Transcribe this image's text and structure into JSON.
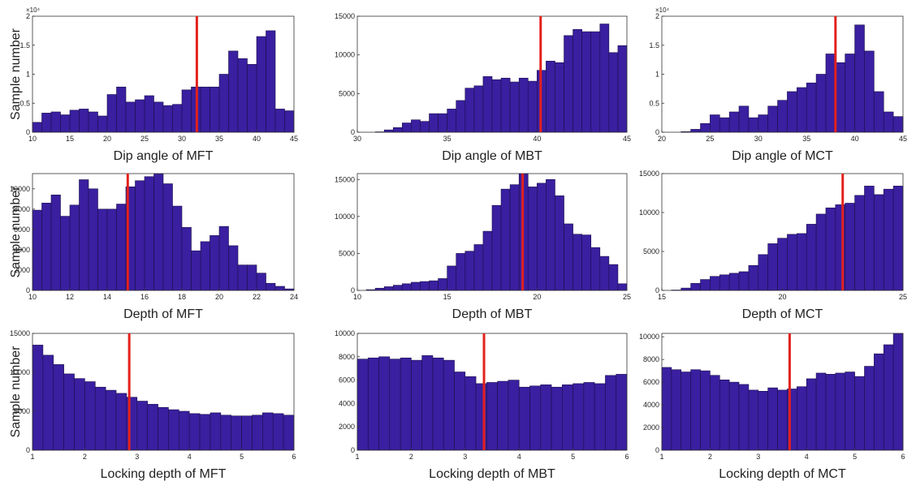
{
  "chart_data": [
    {
      "type": "histogram",
      "x_label": "Dip angle of MFT",
      "y_label": "Sample number",
      "y_exponent_label": "×10⁴",
      "color": "#3a1fa0",
      "marker_color": "#e3211c",
      "marker": 32,
      "bins": [
        10,
        11.25,
        12.5,
        13.75,
        15,
        16.25,
        17.5,
        18.75,
        20,
        21.25,
        22.5,
        23.75,
        25,
        26.25,
        27.5,
        28.75,
        30,
        31.25,
        32.5,
        33.75,
        35,
        36.25,
        37.5,
        38.75,
        40,
        41.25,
        42.5,
        43.75,
        45
      ],
      "values": [
        0.17,
        0.33,
        0.35,
        0.3,
        0.38,
        0.4,
        0.35,
        0.28,
        0.65,
        0.78,
        0.52,
        0.56,
        0.63,
        0.52,
        0.46,
        0.48,
        0.73,
        0.78,
        0.78,
        0.78,
        1.0,
        1.4,
        1.27,
        1.17,
        1.65,
        1.75,
        0.4,
        0.37
      ],
      "xlim": [
        10,
        45
      ],
      "xticks": [
        10,
        15,
        20,
        25,
        30,
        35,
        40,
        45
      ],
      "ylim": [
        0,
        2
      ],
      "yticks": [
        0,
        0.5,
        1,
        1.5,
        2
      ]
    },
    {
      "type": "histogram",
      "x_label": "Dip angle of MBT",
      "color": "#3a1fa0",
      "marker_color": "#e3211c",
      "marker": 40.2,
      "bins": [
        30,
        30.5,
        31,
        31.5,
        32,
        32.5,
        33,
        33.5,
        34,
        34.5,
        35,
        35.5,
        36,
        36.5,
        37,
        37.5,
        38,
        38.5,
        39,
        39.5,
        40,
        40.5,
        41,
        41.5,
        42,
        42.5,
        43,
        43.5,
        44,
        44.5,
        45
      ],
      "values": [
        0,
        0,
        50,
        300,
        600,
        1200,
        1600,
        1400,
        2400,
        2400,
        3000,
        4100,
        5700,
        6000,
        7200,
        6800,
        7000,
        6500,
        7000,
        6600,
        8000,
        9200,
        9000,
        12500,
        13300,
        13000,
        13000,
        14000,
        10300,
        11200
      ],
      "xlim": [
        30,
        45
      ],
      "xticks": [
        30,
        35,
        40,
        45
      ],
      "ylim": [
        0,
        15000
      ],
      "yticks": [
        0,
        5000,
        10000,
        15000
      ]
    },
    {
      "type": "histogram",
      "x_label": "Dip angle of MCT",
      "y_exponent_label": "×10⁴",
      "color": "#3a1fa0",
      "marker_color": "#e3211c",
      "marker": 38,
      "bins": [
        20,
        21,
        22,
        23,
        24,
        25,
        26,
        27,
        28,
        29,
        30,
        31,
        32,
        33,
        34,
        35,
        36,
        37,
        38,
        39,
        40,
        41,
        42,
        43,
        44,
        45
      ],
      "values": [
        0,
        0,
        0.01,
        0.05,
        0.15,
        0.3,
        0.25,
        0.35,
        0.45,
        0.25,
        0.3,
        0.45,
        0.55,
        0.7,
        0.77,
        0.85,
        1.0,
        1.35,
        1.2,
        1.35,
        1.85,
        1.4,
        0.7,
        0.35,
        0.27
      ],
      "xlim": [
        20,
        45
      ],
      "xticks": [
        20,
        25,
        30,
        35,
        40,
        45
      ],
      "ylim": [
        0,
        2
      ],
      "yticks": [
        0,
        0.5,
        1,
        1.5,
        2
      ]
    },
    {
      "type": "histogram",
      "x_label": "Depth of MFT",
      "y_label": "Sample number",
      "color": "#3a1fa0",
      "marker_color": "#e3211c",
      "marker": 15.1,
      "bins": [
        10,
        10.5,
        11,
        11.5,
        12,
        12.5,
        13,
        13.5,
        14,
        14.5,
        15,
        15.5,
        16,
        16.5,
        17,
        17.5,
        18,
        18.5,
        19,
        19.5,
        20,
        20.5,
        21,
        21.5,
        22,
        22.5,
        23,
        23.5,
        24
      ],
      "values": [
        7900,
        8600,
        9400,
        7300,
        8400,
        10900,
        10000,
        8000,
        8000,
        8500,
        10200,
        10800,
        11200,
        11500,
        10500,
        8300,
        6200,
        3900,
        4800,
        5400,
        6300,
        4400,
        2500,
        2500,
        1700,
        700,
        400,
        150
      ],
      "xlim": [
        10,
        24
      ],
      "xticks": [
        10,
        12,
        14,
        16,
        18,
        20,
        22,
        24
      ],
      "ylim": [
        0,
        11500
      ],
      "yticks": [
        0,
        2000,
        4000,
        6000,
        8000,
        10000
      ]
    },
    {
      "type": "histogram",
      "x_label": "Depth of MBT",
      "color": "#3a1fa0",
      "marker_color": "#e3211c",
      "marker": 19.2,
      "bins": [
        10,
        10.5,
        11,
        11.5,
        12,
        12.5,
        13,
        13.5,
        14,
        14.5,
        15,
        15.5,
        16,
        16.5,
        17,
        17.5,
        18,
        18.5,
        19,
        19.5,
        20,
        20.5,
        21,
        21.5,
        22,
        22.5,
        23,
        23.5,
        24,
        24.5,
        25
      ],
      "values": [
        0,
        100,
        300,
        500,
        700,
        900,
        1100,
        1200,
        1300,
        1600,
        3300,
        5000,
        5300,
        6200,
        8000,
        11500,
        13700,
        14300,
        15800,
        14000,
        14500,
        15000,
        12800,
        9000,
        7600,
        7500,
        5800,
        4600,
        3500,
        900
      ],
      "xlim": [
        10,
        25
      ],
      "xticks": [
        10,
        15,
        20,
        25
      ],
      "ylim": [
        0,
        15800
      ],
      "yticks": [
        0,
        5000,
        10000,
        15000
      ]
    },
    {
      "type": "histogram",
      "x_label": "Depth of MCT",
      "color": "#3a1fa0",
      "marker_color": "#e3211c",
      "marker": 22.5,
      "bins": [
        15,
        15.4,
        15.8,
        16.2,
        16.6,
        17,
        17.4,
        17.8,
        18.2,
        18.6,
        19,
        19.4,
        19.8,
        20.2,
        20.6,
        21,
        21.4,
        21.8,
        22.2,
        22.6,
        23,
        23.4,
        23.8,
        24.2,
        24.6,
        25
      ],
      "values": [
        0,
        50,
        300,
        900,
        1400,
        1800,
        2000,
        2200,
        2400,
        3200,
        4600,
        6000,
        6700,
        7200,
        7300,
        8500,
        9800,
        10600,
        11000,
        11200,
        12200,
        13400,
        12300,
        13000,
        13400
      ],
      "xlim": [
        15,
        25
      ],
      "xticks": [
        15,
        20,
        25
      ],
      "ylim": [
        0,
        15000
      ],
      "yticks": [
        0,
        5000,
        10000,
        15000
      ]
    },
    {
      "type": "histogram",
      "x_label": "Locking depth of MFT",
      "y_label": "Sample number",
      "color": "#3a1fa0",
      "marker_color": "#e3211c",
      "marker": 2.85,
      "bins": [
        1,
        1.2,
        1.4,
        1.6,
        1.8,
        2,
        2.2,
        2.4,
        2.6,
        2.8,
        3,
        3.2,
        3.4,
        3.6,
        3.8,
        4,
        4.2,
        4.4,
        4.6,
        4.8,
        5,
        5.2,
        5.4,
        5.6,
        5.8,
        6
      ],
      "values": [
        13500,
        12200,
        11000,
        9800,
        9200,
        8800,
        8100,
        7700,
        7300,
        6800,
        6300,
        5900,
        5500,
        5200,
        5000,
        4700,
        4600,
        4800,
        4500,
        4400,
        4400,
        4500,
        4800,
        4700,
        4500
      ],
      "xlim": [
        1,
        6
      ],
      "xticks": [
        1,
        2,
        3,
        4,
        5,
        6
      ],
      "ylim": [
        0,
        15000
      ],
      "yticks": [
        0,
        5000,
        10000,
        15000
      ]
    },
    {
      "type": "histogram",
      "x_label": "Locking depth of MBT",
      "color": "#3a1fa0",
      "marker_color": "#e3211c",
      "marker": 3.35,
      "bins": [
        1,
        1.2,
        1.4,
        1.6,
        1.8,
        2,
        2.2,
        2.4,
        2.6,
        2.8,
        3,
        3.2,
        3.4,
        3.6,
        3.8,
        4,
        4.2,
        4.4,
        4.6,
        4.8,
        5,
        5.2,
        5.4,
        5.6,
        5.8,
        6
      ],
      "values": [
        7800,
        7900,
        8000,
        7800,
        7900,
        7700,
        8100,
        7900,
        7700,
        6700,
        6300,
        5700,
        5800,
        5900,
        6000,
        5400,
        5500,
        5600,
        5400,
        5600,
        5700,
        5800,
        5700,
        6400,
        6500
      ],
      "xlim": [
        1,
        6
      ],
      "xticks": [
        1,
        2,
        3,
        4,
        5,
        6
      ],
      "ylim": [
        0,
        10000
      ],
      "yticks": [
        0,
        2000,
        4000,
        6000,
        8000,
        10000
      ]
    },
    {
      "type": "histogram",
      "x_label": "Locking depth of MCT",
      "color": "#3a1fa0",
      "marker_color": "#e3211c",
      "marker": 3.65,
      "bins": [
        1,
        1.2,
        1.4,
        1.6,
        1.8,
        2,
        2.2,
        2.4,
        2.6,
        2.8,
        3,
        3.2,
        3.4,
        3.6,
        3.8,
        4,
        4.2,
        4.4,
        4.6,
        4.8,
        5,
        5.2,
        5.4,
        5.6,
        5.8,
        6
      ],
      "values": [
        7300,
        7100,
        6900,
        7100,
        7000,
        6600,
        6200,
        6000,
        5800,
        5300,
        5200,
        5500,
        5300,
        5400,
        5600,
        6300,
        6800,
        6700,
        6800,
        6900,
        6500,
        7400,
        8500,
        9300,
        10300
      ],
      "xlim": [
        1,
        6
      ],
      "xticks": [
        1,
        2,
        3,
        4,
        5,
        6
      ],
      "ylim": [
        0,
        10300
      ],
      "yticks": [
        0,
        2000,
        4000,
        6000,
        8000,
        10000
      ]
    }
  ]
}
